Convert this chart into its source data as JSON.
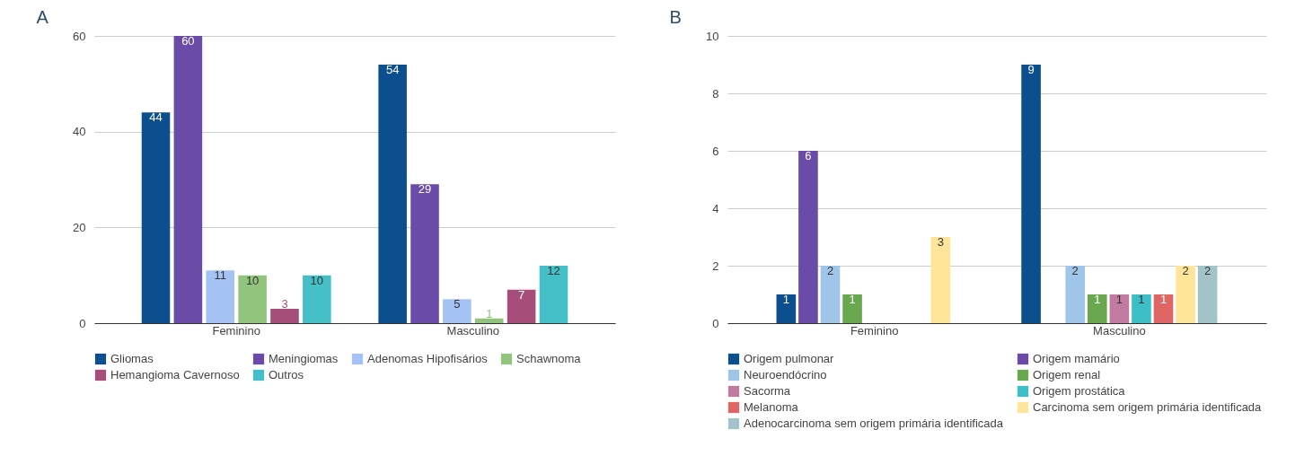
{
  "chart_data": [
    {
      "type": "bar",
      "annotations": [
        "A"
      ],
      "categories": [
        "Feminino",
        "Masculino"
      ],
      "ylim": [
        0,
        60
      ],
      "yticks": [
        0,
        20,
        40,
        60
      ],
      "grid": "y",
      "legend": "bottom",
      "data_labels": true,
      "series": [
        {
          "name": "Gliomas",
          "color": "#0b4f8e",
          "values": [
            44,
            54
          ]
        },
        {
          "name": "Meningiomas",
          "color": "#6a4ca8",
          "values": [
            60,
            29
          ]
        },
        {
          "name": "Adenomas Hipofisários",
          "color": "#a4c2f4",
          "values": [
            11,
            5
          ]
        },
        {
          "name": "Schawnoma",
          "color": "#93c47d",
          "values": [
            10,
            1
          ]
        },
        {
          "name": "Hemangioma Cavernoso",
          "color": "#a64d79",
          "values": [
            3,
            7
          ]
        },
        {
          "name": "Outros",
          "color": "#45bfc7",
          "values": [
            10,
            12
          ]
        }
      ]
    },
    {
      "type": "bar",
      "annotations": [
        "B"
      ],
      "categories": [
        "Feminino",
        "Masculino"
      ],
      "ylim": [
        0,
        10
      ],
      "yticks": [
        0,
        2,
        4,
        6,
        8,
        10
      ],
      "grid": "y",
      "legend": "bottom",
      "data_labels": true,
      "series": [
        {
          "name": "Origem pulmonar",
          "color": "#0b4f8e",
          "values": [
            1,
            9
          ]
        },
        {
          "name": "Origem mamário",
          "color": "#6a4ca8",
          "values": [
            6,
            null
          ]
        },
        {
          "name": "Neuroendócrino",
          "color": "#9fc5e8",
          "values": [
            2,
            2
          ]
        },
        {
          "name": "Origem renal",
          "color": "#6aa84f",
          "values": [
            1,
            1
          ]
        },
        {
          "name": "Sacorma",
          "color": "#c27ba0",
          "values": [
            null,
            1
          ]
        },
        {
          "name": "Origem prostática",
          "color": "#3dbfc7",
          "values": [
            null,
            1
          ]
        },
        {
          "name": "Melanoma",
          "color": "#e06666",
          "values": [
            null,
            1
          ]
        },
        {
          "name": "Carcinoma sem origem primária identificada",
          "color": "#ffe599",
          "values": [
            3,
            2
          ]
        },
        {
          "name": "Adenocarcinoma sem origem primária identificada",
          "color": "#a2c4c9",
          "values": [
            null,
            2
          ]
        }
      ]
    }
  ]
}
